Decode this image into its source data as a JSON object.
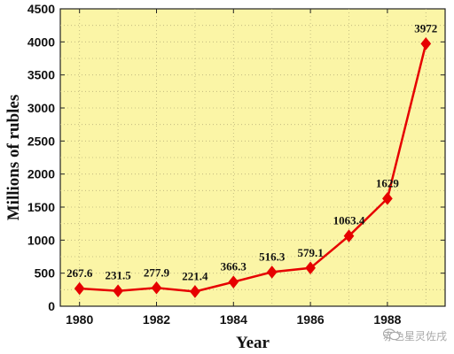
{
  "chart_data": {
    "type": "line",
    "xlabel": "Year",
    "ylabel": "Millions of rubles",
    "xlim": [
      1979.5,
      1989.5
    ],
    "ylim": [
      0,
      4500
    ],
    "xticks": [
      1980,
      1982,
      1984,
      1986,
      1988
    ],
    "yticks": [
      0,
      500,
      1000,
      1500,
      2000,
      2500,
      3000,
      3500,
      4000,
      4500
    ],
    "grid": true,
    "series": [
      {
        "color": "#e60000",
        "marker": "diamond",
        "x": [
          1980,
          1981,
          1982,
          1983,
          1984,
          1985,
          1986,
          1987,
          1988,
          1989
        ],
        "y": [
          267.6,
          231.5,
          277.9,
          221.4,
          366.3,
          516.3,
          579.1,
          1063.4,
          1629,
          3972
        ],
        "labels": [
          "267.6",
          "231.5",
          "277.9",
          "221.4",
          "366.3",
          "516.3",
          "579.1",
          "1063.4",
          "1629",
          "3972"
        ]
      }
    ],
    "background_color": "#fbf5a6"
  },
  "watermark": {
    "icon": "wechat-icon",
    "text": "赤色星灵佐戌"
  }
}
